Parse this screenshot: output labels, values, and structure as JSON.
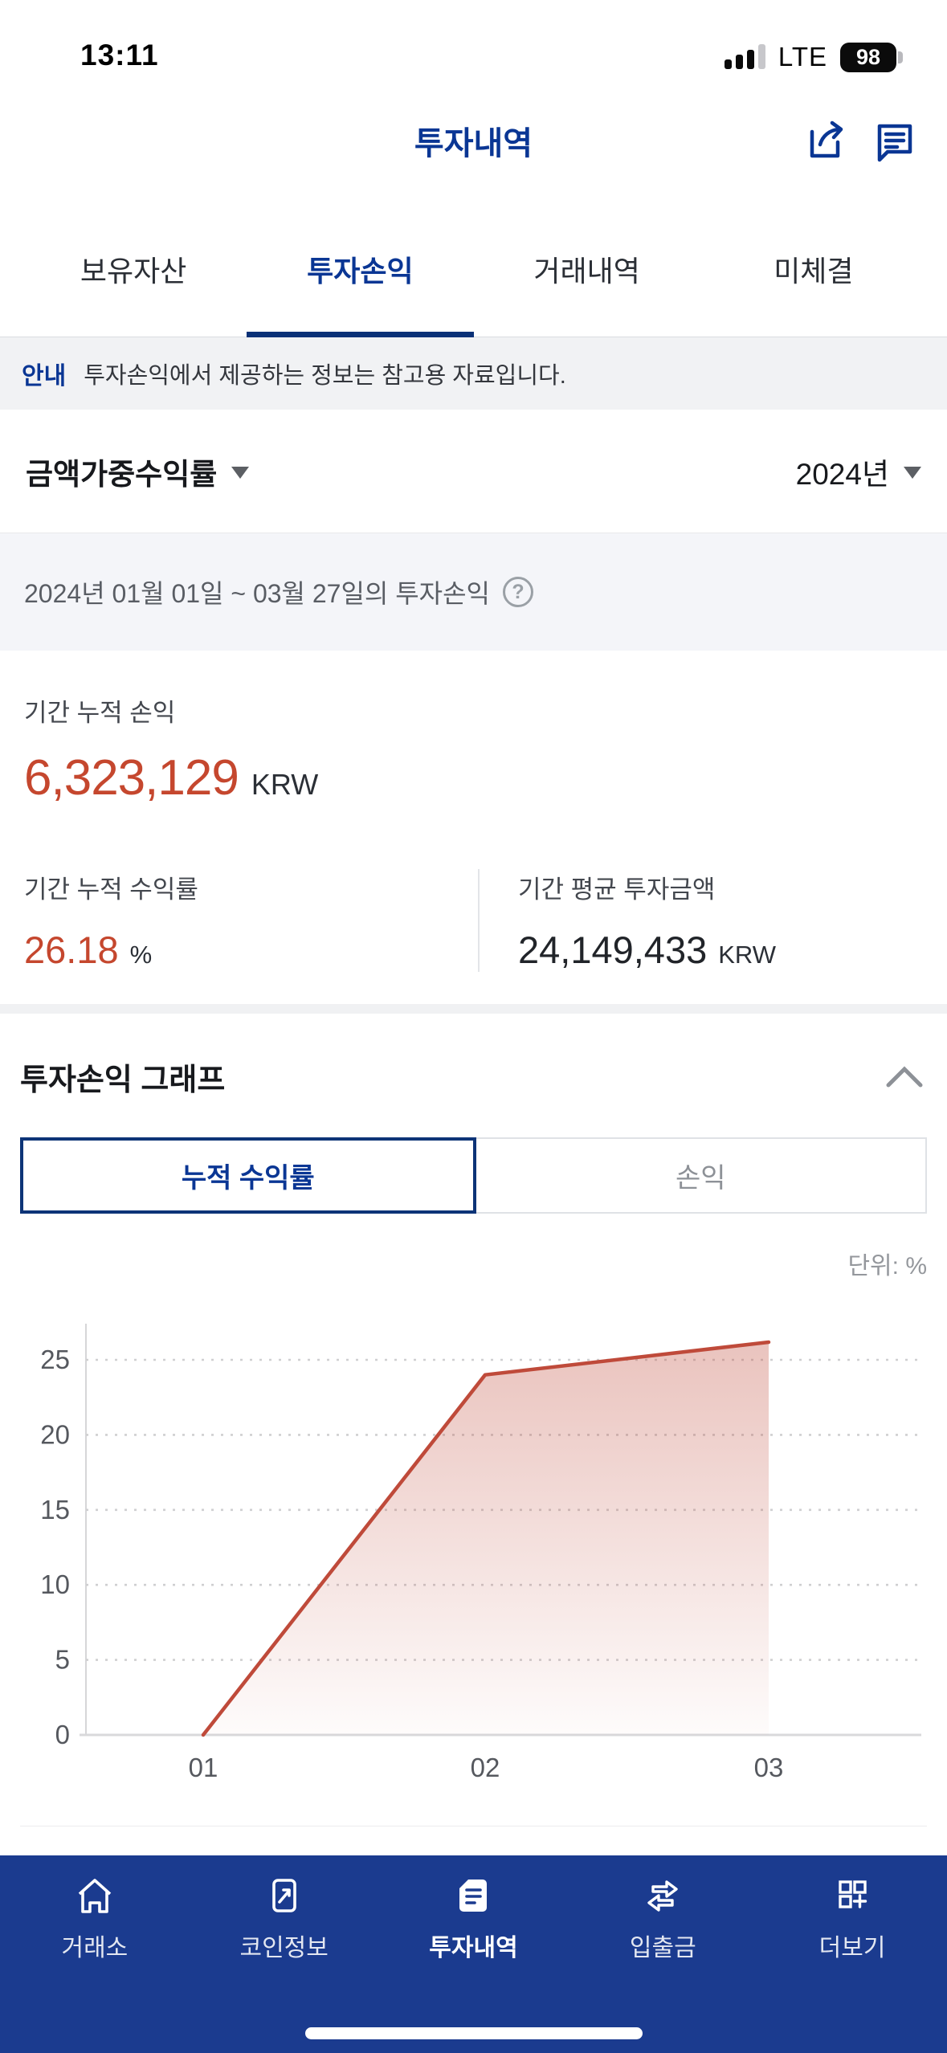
{
  "status_bar": {
    "time": "13:11",
    "network": "LTE",
    "battery": "98"
  },
  "header": {
    "title": "투자내역"
  },
  "tabs": [
    {
      "label": "보유자산",
      "active": false
    },
    {
      "label": "투자손익",
      "active": true
    },
    {
      "label": "거래내역",
      "active": false
    },
    {
      "label": "미체결",
      "active": false
    }
  ],
  "notice": {
    "badge": "안내",
    "text": "투자손익에서 제공하는 정보는 참고용 자료입니다."
  },
  "filters": {
    "metric": "금액가중수익률",
    "year": "2024년"
  },
  "period_info": {
    "text": "2024년 01월 01일 ~ 03월 27일의 투자손익",
    "help_glyph": "?"
  },
  "summary": {
    "cumulative_profit": {
      "label": "기간 누적 손익",
      "value": "6,323,129",
      "unit": "KRW"
    },
    "cumulative_return": {
      "label": "기간 누적 수익률",
      "value": "26.18",
      "unit": "%"
    },
    "avg_investment": {
      "label": "기간 평균 투자금액",
      "value": "24,149,433",
      "unit": "KRW"
    }
  },
  "graph_section": {
    "title": "투자손익 그래프",
    "toggle": [
      {
        "label": "누적 수익률",
        "active": true
      },
      {
        "label": "손익",
        "active": false
      }
    ],
    "unit_label": "단위: %"
  },
  "chart_data": {
    "type": "area",
    "title": "누적 수익률 그래프",
    "x": [
      "01",
      "02",
      "03"
    ],
    "series": [
      {
        "name": "누적 수익률",
        "values": [
          0,
          24,
          26.18
        ]
      }
    ],
    "ylabel": "%",
    "y_ticks": [
      0,
      5,
      10,
      15,
      20,
      25
    ],
    "ylim": [
      0,
      27.5
    ],
    "grid": "dotted-horizontal",
    "legend": "none",
    "line_color": "#bf4a3a",
    "fill_top_color": "rgba(191,74,58,0.33)",
    "fill_bottom_color": "rgba(191,74,58,0.02)"
  },
  "bottom_nav": {
    "items": [
      {
        "label": "거래소",
        "icon": "home-icon",
        "active": false
      },
      {
        "label": "코인정보",
        "icon": "coin-chart-icon",
        "active": false
      },
      {
        "label": "투자내역",
        "icon": "document-icon",
        "active": true
      },
      {
        "label": "입출금",
        "icon": "transfer-arrows-icon",
        "active": false
      },
      {
        "label": "더보기",
        "icon": "more-grid-icon",
        "active": false
      }
    ]
  },
  "colors": {
    "brand_navy": "#0a3694",
    "nav_navy": "#1b3b8f",
    "accent_red": "#c5472e",
    "notice_bg": "#f1f2f4",
    "date_bar_bg": "#f4f5f9"
  }
}
